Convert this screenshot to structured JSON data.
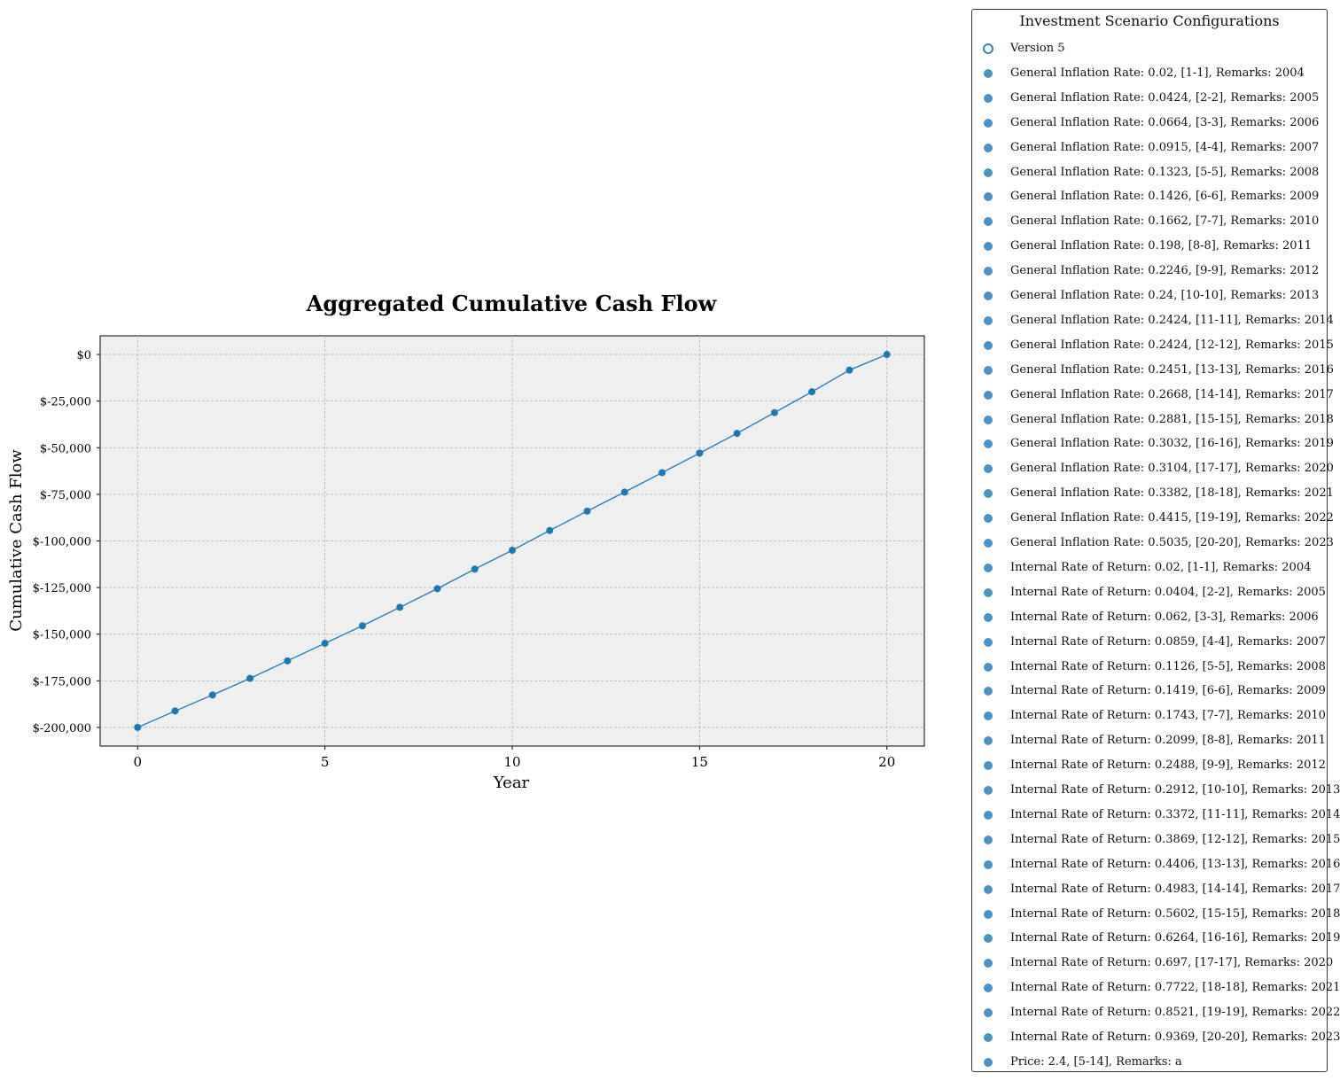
{
  "chart_data": {
    "type": "line",
    "title": "Aggregated Cumulative Cash Flow",
    "xlabel": "Year",
    "ylabel": "Cumulative Cash Flow",
    "xlim": [
      -1,
      21
    ],
    "ylim": [
      -210000,
      10000
    ],
    "x_ticks": [
      0,
      5,
      10,
      15,
      20
    ],
    "y_ticks": [
      0,
      -25000,
      -50000,
      -75000,
      -100000,
      -125000,
      -150000,
      -175000,
      -200000
    ],
    "y_tick_labels": [
      "$0",
      "$-25,000",
      "$-50,000",
      "$-75,000",
      "$-100,000",
      "$-125,000",
      "$-150,000",
      "$-175,000",
      "$-200,000"
    ],
    "grid": true,
    "series": [
      {
        "x": [
          0,
          1,
          2,
          3,
          4,
          5,
          6,
          7,
          8,
          9,
          10,
          11,
          12,
          13,
          14,
          15,
          16,
          17,
          18,
          19,
          20
        ],
        "values": [
          -200000,
          -191200,
          -182600,
          -173700,
          -164300,
          -154900,
          -145500,
          -135600,
          -125600,
          -115100,
          -105000,
          -94400,
          -84000,
          -73800,
          -63400,
          -52900,
          -42300,
          -31200,
          -20000,
          -8400,
          0
        ],
        "color": "#1f77b4"
      }
    ]
  },
  "legend": {
    "title": "Investment Scenario Configurations",
    "placement": "right",
    "items": [
      {
        "label": "Version 5",
        "hollow": true
      },
      {
        "label": "General Inflation Rate: 0.02, [1-1], Remarks: 2004"
      },
      {
        "label": "General Inflation Rate: 0.0424, [2-2], Remarks: 2005"
      },
      {
        "label": "General Inflation Rate: 0.0664, [3-3], Remarks: 2006"
      },
      {
        "label": "General Inflation Rate: 0.0915, [4-4], Remarks: 2007"
      },
      {
        "label": "General Inflation Rate: 0.1323, [5-5], Remarks: 2008"
      },
      {
        "label": "General Inflation Rate: 0.1426, [6-6], Remarks: 2009"
      },
      {
        "label": "General Inflation Rate: 0.1662, [7-7], Remarks: 2010"
      },
      {
        "label": "General Inflation Rate: 0.198, [8-8], Remarks: 2011"
      },
      {
        "label": "General Inflation Rate: 0.2246, [9-9], Remarks: 2012"
      },
      {
        "label": "General Inflation Rate: 0.24, [10-10], Remarks: 2013"
      },
      {
        "label": "General Inflation Rate: 0.2424, [11-11], Remarks: 2014"
      },
      {
        "label": "General Inflation Rate: 0.2424, [12-12], Remarks: 2015"
      },
      {
        "label": "General Inflation Rate: 0.2451, [13-13], Remarks: 2016"
      },
      {
        "label": "General Inflation Rate: 0.2668, [14-14], Remarks: 2017"
      },
      {
        "label": "General Inflation Rate: 0.2881, [15-15], Remarks: 2018"
      },
      {
        "label": "General Inflation Rate: 0.3032, [16-16], Remarks: 2019"
      },
      {
        "label": "General Inflation Rate: 0.3104, [17-17], Remarks: 2020"
      },
      {
        "label": "General Inflation Rate: 0.3382, [18-18], Remarks: 2021"
      },
      {
        "label": "General Inflation Rate: 0.4415, [19-19], Remarks: 2022"
      },
      {
        "label": "General Inflation Rate: 0.5035, [20-20], Remarks: 2023"
      },
      {
        "label": "Internal Rate of Return: 0.02, [1-1], Remarks: 2004"
      },
      {
        "label": "Internal Rate of Return: 0.0404, [2-2], Remarks: 2005"
      },
      {
        "label": "Internal Rate of Return: 0.062, [3-3], Remarks: 2006"
      },
      {
        "label": "Internal Rate of Return: 0.0859, [4-4], Remarks: 2007"
      },
      {
        "label": "Internal Rate of Return: 0.1126, [5-5], Remarks: 2008"
      },
      {
        "label": "Internal Rate of Return: 0.1419, [6-6], Remarks: 2009"
      },
      {
        "label": "Internal Rate of Return: 0.1743, [7-7], Remarks: 2010"
      },
      {
        "label": "Internal Rate of Return: 0.2099, [8-8], Remarks: 2011"
      },
      {
        "label": "Internal Rate of Return: 0.2488, [9-9], Remarks: 2012"
      },
      {
        "label": "Internal Rate of Return: 0.2912, [10-10], Remarks: 2013"
      },
      {
        "label": "Internal Rate of Return: 0.3372, [11-11], Remarks: 2014"
      },
      {
        "label": "Internal Rate of Return: 0.3869, [12-12], Remarks: 2015"
      },
      {
        "label": "Internal Rate of Return: 0.4406, [13-13], Remarks: 2016"
      },
      {
        "label": "Internal Rate of Return: 0.4983, [14-14], Remarks: 2017"
      },
      {
        "label": "Internal Rate of Return: 0.5602, [15-15], Remarks: 2018"
      },
      {
        "label": "Internal Rate of Return: 0.6264, [16-16], Remarks: 2019"
      },
      {
        "label": "Internal Rate of Return: 0.697, [17-17], Remarks: 2020"
      },
      {
        "label": "Internal Rate of Return: 0.7722, [18-18], Remarks: 2021"
      },
      {
        "label": "Internal Rate of Return: 0.8521, [19-19], Remarks: 2022"
      },
      {
        "label": "Internal Rate of Return: 0.9369, [20-20], Remarks: 2023"
      },
      {
        "label": "Price: 2.4, [5-14], Remarks: a"
      }
    ]
  }
}
